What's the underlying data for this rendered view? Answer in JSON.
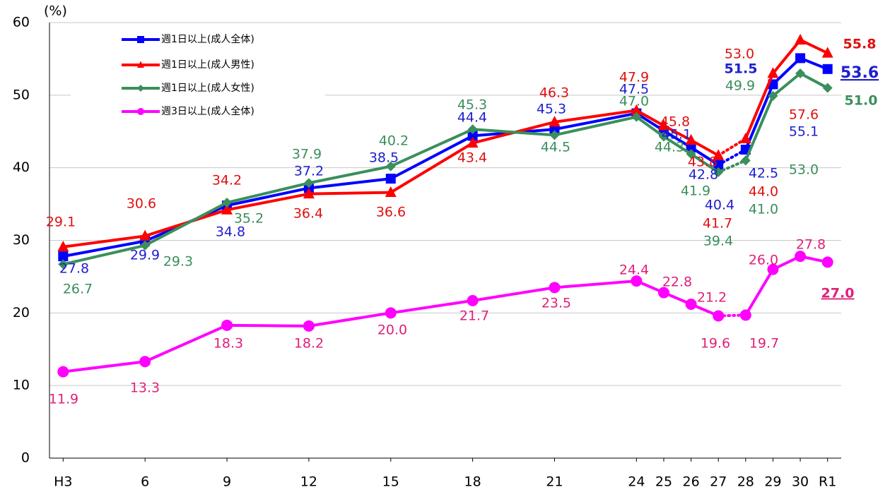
{
  "chart_data": {
    "type": "line",
    "y_axis_label": "(%)",
    "x": [
      3,
      6,
      9,
      12,
      15,
      18,
      21,
      24,
      25,
      26,
      27,
      28,
      29,
      30,
      31
    ],
    "xlim": [
      2.5,
      31.5
    ],
    "xticks": [
      {
        "value": 3,
        "label": "H3"
      },
      6,
      9,
      12,
      15,
      18,
      21,
      24,
      25,
      26,
      27,
      28,
      29,
      30,
      {
        "value": 31,
        "label": "R1"
      }
    ],
    "ylim": [
      0,
      60
    ],
    "yticks": [
      0,
      10,
      20,
      30,
      40,
      50,
      60
    ],
    "grid": true,
    "legend_position": "upper left",
    "dotted_segment": [
      27,
      28
    ],
    "series": [
      {
        "name": "週1日以上(成人全体)",
        "color": "#0000ff",
        "label_color": "#2020d0",
        "marker": "square",
        "values": [
          27.8,
          29.9,
          34.8,
          37.2,
          38.5,
          44.4,
          45.3,
          47.5,
          45.1,
          42.8,
          40.4,
          42.5,
          51.5,
          55.1,
          53.6
        ],
        "value_labels": [
          "27.8",
          "29.9",
          "34.8",
          "37.2",
          "38.5",
          "44.4",
          "45.3",
          "47.5",
          "45.1",
          "42.8",
          "40.4",
          "42.5",
          "51.5",
          "55.1",
          "53.6"
        ]
      },
      {
        "name": "週1日以上(成人男性)",
        "color": "#ff0000",
        "label_color": "#e01010",
        "marker": "triangle",
        "values": [
          29.1,
          30.6,
          34.2,
          36.4,
          36.6,
          43.4,
          46.3,
          47.9,
          45.8,
          43.8,
          41.7,
          44.0,
          53.0,
          57.6,
          55.8
        ],
        "value_labels": [
          "29.1",
          "30.6",
          "34.2",
          "36.4",
          "36.6",
          "43.4",
          "46.3",
          "47.9",
          "45.8",
          "43.8",
          "41.7",
          "44.0",
          "53.0",
          "57.6",
          "55.8"
        ]
      },
      {
        "name": "週1日以上(成人女性)",
        "color": "#3a8f5c",
        "label_color": "#3a8f5c",
        "marker": "diamond",
        "values": [
          26.7,
          29.3,
          35.2,
          37.9,
          40.2,
          45.3,
          44.5,
          47.0,
          44.3,
          41.9,
          39.4,
          41.0,
          49.9,
          53.0,
          51.0
        ],
        "value_labels": [
          "26.7",
          "29.3",
          "35.2",
          "37.9",
          "40.2",
          "45.3",
          "44.5",
          "47.0",
          "44.3",
          "41.9",
          "39.4",
          "41.0",
          "49.9",
          "53.0",
          "51.0"
        ]
      },
      {
        "name": "週3日以上(成人全体)",
        "color": "#ff00ff",
        "label_color": "#e0207a",
        "marker": "circle",
        "values": [
          11.9,
          13.3,
          18.3,
          18.2,
          20.0,
          21.7,
          23.5,
          24.4,
          22.8,
          21.2,
          19.6,
          19.7,
          26.0,
          27.8,
          27.0
        ],
        "value_labels": [
          "11.9",
          "13.3",
          "18.3",
          "18.2",
          "20.0",
          "21.7",
          "23.5",
          "24.4",
          "22.8",
          "21.2",
          "19.6",
          "19.7",
          "26.0",
          "27.8",
          "27.0"
        ]
      }
    ]
  }
}
